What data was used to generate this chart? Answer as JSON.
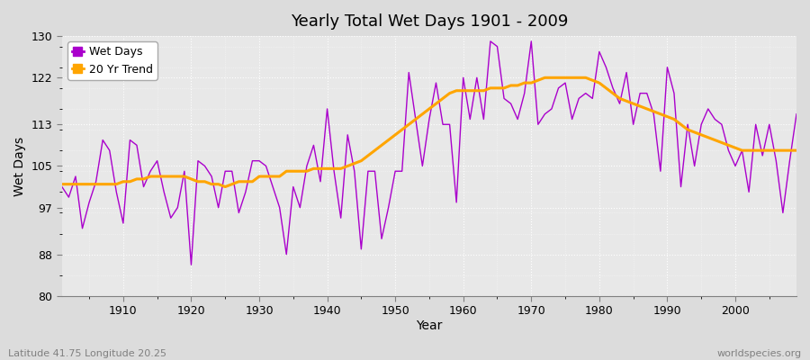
{
  "title": "Yearly Total Wet Days 1901 - 2009",
  "xlabel": "Year",
  "ylabel": "Wet Days",
  "xlim": [
    1901,
    2009
  ],
  "ylim": [
    80,
    130
  ],
  "yticks": [
    80,
    88,
    97,
    105,
    113,
    122,
    130
  ],
  "xticks": [
    1910,
    1920,
    1930,
    1940,
    1950,
    1960,
    1970,
    1980,
    1990,
    2000
  ],
  "wet_days_color": "#AA00CC",
  "trend_color": "#FFA500",
  "background_color": "#DCDCDC",
  "plot_bg_color": "#E8E8E8",
  "subtitle_left": "Latitude 41.75 Longitude 20.25",
  "subtitle_right": "worldspecies.org",
  "legend_labels": [
    "Wet Days",
    "20 Yr Trend"
  ],
  "years": [
    1901,
    1902,
    1903,
    1904,
    1905,
    1906,
    1907,
    1908,
    1909,
    1910,
    1911,
    1912,
    1913,
    1914,
    1915,
    1916,
    1917,
    1918,
    1919,
    1920,
    1921,
    1922,
    1923,
    1924,
    1925,
    1926,
    1927,
    1928,
    1929,
    1930,
    1931,
    1932,
    1933,
    1934,
    1935,
    1936,
    1937,
    1938,
    1939,
    1940,
    1941,
    1942,
    1943,
    1944,
    1945,
    1946,
    1947,
    1948,
    1949,
    1950,
    1951,
    1952,
    1953,
    1954,
    1955,
    1956,
    1957,
    1958,
    1959,
    1960,
    1961,
    1962,
    1963,
    1964,
    1965,
    1966,
    1967,
    1968,
    1969,
    1970,
    1971,
    1972,
    1973,
    1974,
    1975,
    1976,
    1977,
    1978,
    1979,
    1980,
    1981,
    1982,
    1983,
    1984,
    1985,
    1986,
    1987,
    1988,
    1989,
    1990,
    1991,
    1992,
    1993,
    1994,
    1995,
    1996,
    1997,
    1998,
    1999,
    2000,
    2001,
    2002,
    2003,
    2004,
    2005,
    2006,
    2007,
    2008,
    2009
  ],
  "wet_days": [
    101,
    99,
    103,
    93,
    98,
    102,
    110,
    108,
    100,
    94,
    110,
    109,
    101,
    104,
    106,
    100,
    95,
    97,
    104,
    86,
    106,
    105,
    103,
    97,
    104,
    104,
    96,
    100,
    106,
    106,
    105,
    101,
    97,
    88,
    101,
    97,
    105,
    109,
    102,
    116,
    104,
    95,
    111,
    104,
    89,
    104,
    104,
    91,
    97,
    104,
    104,
    123,
    114,
    105,
    114,
    121,
    113,
    113,
    98,
    122,
    114,
    122,
    114,
    129,
    128,
    118,
    117,
    114,
    119,
    129,
    113,
    115,
    116,
    120,
    121,
    114,
    118,
    119,
    118,
    127,
    124,
    120,
    117,
    123,
    113,
    119,
    119,
    115,
    104,
    124,
    119,
    101,
    113,
    105,
    113,
    116,
    114,
    113,
    108,
    105,
    108,
    100,
    113,
    107,
    113,
    106,
    96,
    106,
    115
  ],
  "trend": [
    101.5,
    101.5,
    101.5,
    101.5,
    101.5,
    101.5,
    101.5,
    101.5,
    101.5,
    102,
    102,
    102.5,
    102.5,
    103,
    103,
    103,
    103,
    103,
    103,
    102.5,
    102,
    102,
    101.5,
    101.5,
    101,
    101.5,
    102,
    102,
    102,
    103,
    103,
    103,
    103,
    104,
    104,
    104,
    104,
    104.5,
    104.5,
    104.5,
    104.5,
    104.5,
    105,
    105.5,
    106,
    107,
    108,
    109,
    110,
    111,
    112,
    113,
    114,
    115,
    116,
    117,
    118,
    119,
    119.5,
    119.5,
    119.5,
    119.5,
    119.5,
    120,
    120,
    120,
    120.5,
    120.5,
    121,
    121,
    121.5,
    122,
    122,
    122,
    122,
    122,
    122,
    122,
    121.5,
    121,
    120,
    119,
    118,
    117.5,
    117,
    116.5,
    116,
    115.5,
    115,
    114.5,
    114,
    113,
    112,
    111.5,
    111,
    110.5,
    110,
    109.5,
    109,
    108.5,
    108,
    108,
    108,
    108,
    108,
    108,
    108,
    108,
    108
  ]
}
